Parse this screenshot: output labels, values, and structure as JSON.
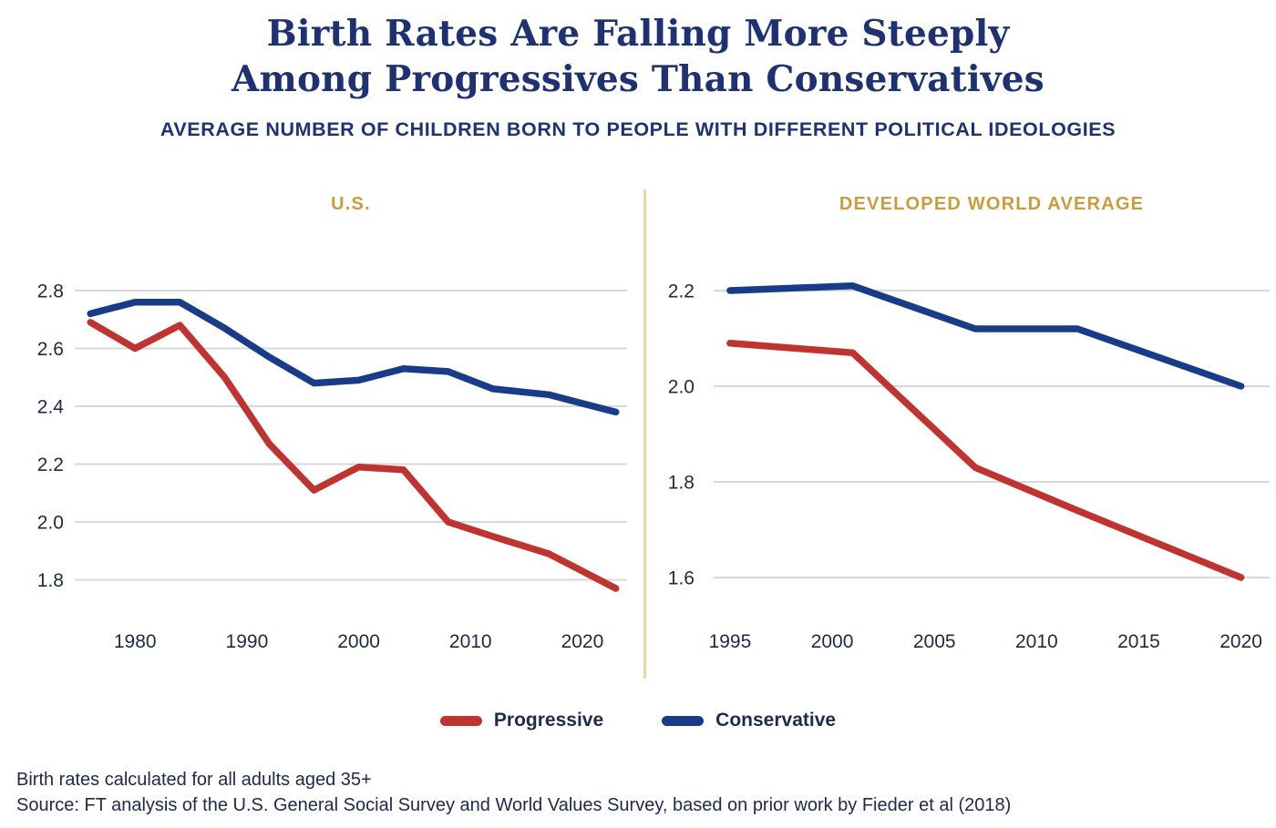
{
  "header": {
    "title_line1": "Birth Rates Are Falling More Steeply",
    "title_line2": "Among Progressives Than Conservatives",
    "subtitle": "AVERAGE NUMBER OF CHILDREN BORN TO PEOPLE WITH DIFFERENT POLITICAL IDEOLOGIES"
  },
  "colors": {
    "title_navy": "#1E3272",
    "accent_gold": "#C99C3C",
    "divider_gold": "#EBD7A0",
    "progressive_red": "#BF3430",
    "conservative_navy": "#183C87",
    "gridline_gray": "#D8D8D8",
    "tick_navy": "#1D2945"
  },
  "legend": {
    "items": [
      {
        "label": "Progressive",
        "color_key": "progressive_red"
      },
      {
        "label": "Conservative",
        "color_key": "conservative_navy"
      }
    ]
  },
  "footer": {
    "note": "Birth rates calculated for all adults aged 35+",
    "source": "Source: FT analysis of the U.S. General Social Survey and World Values Survey, based on prior work by Fieder et al (2018)"
  },
  "chart_data": [
    {
      "id": "us",
      "type": "line",
      "title": "U.S.",
      "x": [
        1976,
        1980,
        1984,
        1988,
        1992,
        1996,
        2000,
        2004,
        2008,
        2012,
        2017,
        2023
      ],
      "series": [
        {
          "name": "Progressive",
          "color_key": "progressive_red",
          "values": [
            2.69,
            2.6,
            2.68,
            2.5,
            2.27,
            2.11,
            2.19,
            2.18,
            2.0,
            1.95,
            1.89,
            1.77
          ]
        },
        {
          "name": "Conservative",
          "color_key": "conservative_navy",
          "values": [
            2.72,
            2.76,
            2.76,
            2.67,
            2.57,
            2.48,
            2.49,
            2.53,
            2.52,
            2.46,
            2.44,
            2.38
          ]
        }
      ],
      "yticks": [
        2.8,
        2.6,
        2.4,
        2.2,
        2.0,
        1.8
      ],
      "xticks": [
        1980,
        1990,
        2000,
        2010,
        2020
      ],
      "ylim": [
        1.8,
        2.8
      ],
      "xlim": [
        1974.6,
        2024.0
      ],
      "grid": true,
      "legend_position": "bottom"
    },
    {
      "id": "world",
      "type": "line",
      "title": "DEVELOPED WORLD AVERAGE",
      "x": [
        1995,
        2001,
        2007,
        2012,
        2020
      ],
      "series": [
        {
          "name": "Progressive",
          "color_key": "progressive_red",
          "values": [
            2.09,
            2.07,
            1.83,
            1.74,
            1.6
          ]
        },
        {
          "name": "Conservative",
          "color_key": "conservative_navy",
          "values": [
            2.2,
            2.21,
            2.12,
            2.12,
            2.0
          ]
        }
      ],
      "yticks": [
        2.2,
        2.0,
        1.8,
        1.6
      ],
      "xticks": [
        1995,
        2000,
        2005,
        2010,
        2015,
        2020
      ],
      "ylim": [
        1.6,
        2.2
      ],
      "xlim": [
        1994.2,
        2021.4
      ],
      "grid": true,
      "legend_position": "bottom"
    }
  ]
}
